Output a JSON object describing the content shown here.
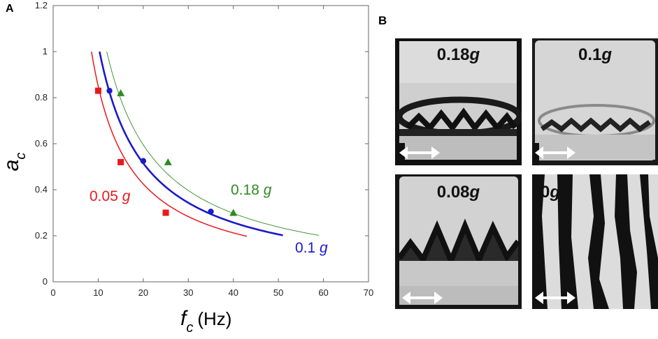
{
  "chart_data": {
    "type": "line",
    "panel_label": "A",
    "xlabel_main": "f",
    "xlabel_sub": "c",
    "xlabel_unit": "(Hz)",
    "ylabel_main": "a",
    "ylabel_sub": "c",
    "xlim": [
      0,
      70
    ],
    "ylim": [
      0,
      1.2
    ],
    "xticks": [
      "0",
      "10",
      "20",
      "30",
      "40",
      "50",
      "60",
      "70"
    ],
    "yticks": [
      "0",
      "0.2",
      "0.4",
      "0.6",
      "0.8",
      "1",
      "1.2"
    ],
    "series": [
      {
        "name": "0.05 g",
        "color": "#e8191e",
        "marker": "square",
        "points": [
          [
            10,
            0.83
          ],
          [
            15,
            0.52
          ],
          [
            25,
            0.3
          ]
        ],
        "curve_k": 8.5,
        "curve_range": [
          8.5,
          43
        ],
        "label_value": "0.05",
        "label_unit": "g"
      },
      {
        "name": "0.1 g",
        "color": "#1a1ac8",
        "marker": "circle",
        "points": [
          [
            12.5,
            0.83
          ],
          [
            20,
            0.525
          ],
          [
            35,
            0.305
          ]
        ],
        "curve_k": 10.3,
        "curve_range": [
          10.3,
          51
        ],
        "label_value": "0.1",
        "label_unit": "g"
      },
      {
        "name": "0.18 g",
        "color": "#2e8b22",
        "marker": "triangle",
        "points": [
          [
            15,
            0.82
          ],
          [
            25.5,
            0.52
          ],
          [
            40,
            0.3
          ]
        ],
        "curve_k": 11.9,
        "curve_range": [
          11.9,
          59
        ],
        "label_value": "0.18",
        "label_unit": "g"
      }
    ]
  },
  "panel_b": {
    "panel_label": "B",
    "photos": [
      {
        "value": "0.18",
        "unit": "g"
      },
      {
        "value": "0.1",
        "unit": "g"
      },
      {
        "value": "0.08",
        "unit": "g"
      },
      {
        "value": "0",
        "unit": "g"
      }
    ]
  }
}
